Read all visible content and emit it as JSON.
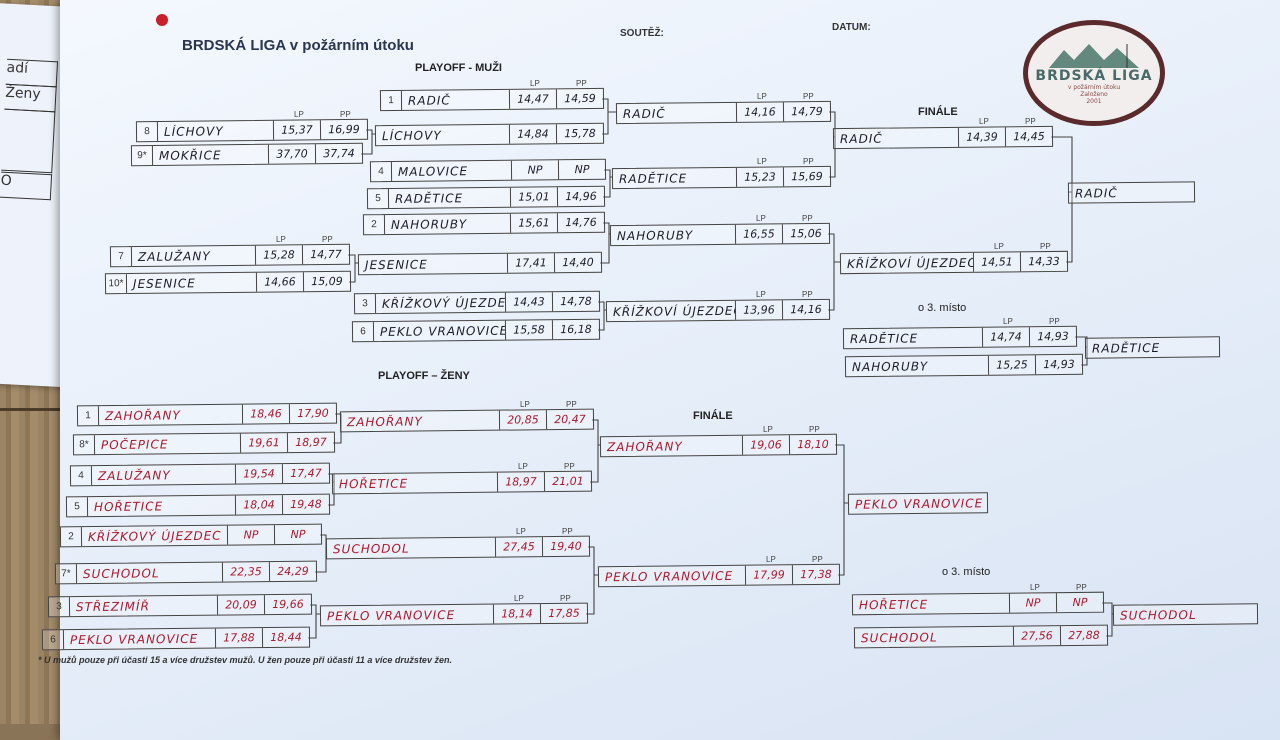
{
  "header": {
    "title": "BRDSKÁ LIGA v požárním útoku",
    "competition_label": "SOUTĚŽ:",
    "date_label": "DATUM:",
    "logo": {
      "name": "BRDSKÁ LIGA",
      "subtitle": "v požárním útoku",
      "founded_label": "Založeno",
      "founded_year": "2001"
    }
  },
  "left_sheet": {
    "cells": [
      "adí",
      "Ženy",
      "",
      "O"
    ]
  },
  "column_labels": {
    "lp": "LP",
    "pp": "PP"
  },
  "men": {
    "title": "PLAYOFF - MUŽI",
    "final_label": "FINÁLE",
    "third_label": "o 3. místo",
    "round1": [
      {
        "seed": "8",
        "team": "LÍCHOVY",
        "lp": "15,37",
        "pp": "16,99"
      },
      {
        "seed": "9*",
        "team": "MOKŘICE",
        "lp": "37,70",
        "pp": "37,74"
      },
      {
        "seed": "7",
        "team": "ZALUŽANY",
        "lp": "15,28",
        "pp": "14,77"
      },
      {
        "seed": "10*",
        "team": "JESENICE",
        "lp": "14,66",
        "pp": "15,09"
      }
    ],
    "quarterfinals": [
      {
        "seed": "1",
        "team": "RADIČ",
        "lp": "14,47",
        "pp": "14,59"
      },
      {
        "seed": "",
        "team": "LÍCHOVY",
        "lp": "14,84",
        "pp": "15,78"
      },
      {
        "seed": "4",
        "team": "MALOVICE",
        "lp": "NP",
        "pp": "NP"
      },
      {
        "seed": "5",
        "team": "RADĚTICE",
        "lp": "15,01",
        "pp": "14,96"
      },
      {
        "seed": "2",
        "team": "NAHORUBY",
        "lp": "15,61",
        "pp": "14,76"
      },
      {
        "seed": "",
        "team": "JESENICE",
        "lp": "17,41",
        "pp": "14,40"
      },
      {
        "seed": "3",
        "team": "KŘÍŽKOVÝ ÚJEZDEC",
        "lp": "14,43",
        "pp": "14,78"
      },
      {
        "seed": "6",
        "team": "PEKLO VRANOVICE",
        "lp": "15,58",
        "pp": "16,18"
      }
    ],
    "semifinals": [
      {
        "team": "RADIČ",
        "lp": "14,16",
        "pp": "14,79"
      },
      {
        "team": "RADĚTICE",
        "lp": "15,23",
        "pp": "15,69"
      },
      {
        "team": "NAHORUBY",
        "lp": "16,55",
        "pp": "15,06"
      },
      {
        "team": "KŘÍŽKOVÍ ÚJEZDEC",
        "lp": "13,96",
        "pp": "14,16"
      }
    ],
    "final": [
      {
        "team": "RADIČ",
        "lp": "14,39",
        "pp": "14,45"
      },
      {
        "team": "KŘÍŽKOVÍ ÚJEZDEC",
        "lp": "14,51",
        "pp": "14,33"
      }
    ],
    "winner": "RADIČ",
    "third_place": [
      {
        "team": "RADĚTICE",
        "lp": "14,74",
        "pp": "14,93"
      },
      {
        "team": "NAHORUBY",
        "lp": "15,25",
        "pp": "14,93"
      }
    ],
    "third_winner": "RADĚTICE"
  },
  "women": {
    "title": "PLAYOFF – ŽENY",
    "final_label": "FINÁLE",
    "third_label": "o 3. místo",
    "round1": [
      {
        "seed": "1",
        "team": "ZAHOŘANY",
        "lp": "18,46",
        "pp": "17,90"
      },
      {
        "seed": "8*",
        "team": "POČEPICE",
        "lp": "19,61",
        "pp": "18,97"
      },
      {
        "seed": "4",
        "team": "ZALUŽANY",
        "lp": "19,54",
        "pp": "17,47"
      },
      {
        "seed": "5",
        "team": "HOŘETICE",
        "lp": "18,04",
        "pp": "19,48"
      },
      {
        "seed": "2",
        "team": "KŘÍŽKOVÝ ÚJEZDEC",
        "lp": "NP",
        "pp": "NP"
      },
      {
        "seed": "7*",
        "team": "SUCHODOL",
        "lp": "22,35",
        "pp": "24,29"
      },
      {
        "seed": "3",
        "team": "STŘEZIMÍŘ",
        "lp": "20,09",
        "pp": "19,66"
      },
      {
        "seed": "6",
        "team": "PEKLO VRANOVICE",
        "lp": "17,88",
        "pp": "18,44"
      }
    ],
    "semifinals": [
      {
        "team": "ZAHOŘANY",
        "lp": "20,85",
        "pp": "20,47"
      },
      {
        "team": "HOŘETICE",
        "lp": "18,97",
        "pp": "21,01"
      },
      {
        "team": "SUCHODOL",
        "lp": "27,45",
        "pp": "19,40"
      },
      {
        "team": "PEKLO VRANOVICE",
        "lp": "18,14",
        "pp": "17,85"
      }
    ],
    "final": [
      {
        "team": "ZAHOŘANY",
        "lp": "19,06",
        "pp": "18,10"
      },
      {
        "team": "PEKLO VRANOVICE",
        "lp": "17,99",
        "pp": "17,38"
      }
    ],
    "winner": "PEKLO VRANOVICE",
    "third_place": [
      {
        "team": "HOŘETICE",
        "lp": "NP",
        "pp": "NP"
      },
      {
        "team": "SUCHODOL",
        "lp": "27,56",
        "pp": "27,88"
      }
    ],
    "third_winner": "SUCHODOL"
  },
  "footnote": "* U mužů pouze při účasti 15 a více družstev mužů. U žen pouze při účasti 11 a více družstev žen.",
  "colors": {
    "men_ink": "#1d1d2a",
    "women_ink": "#b2182b",
    "paper": "#e6eef9",
    "logo_ring": "#5a2a2c"
  }
}
